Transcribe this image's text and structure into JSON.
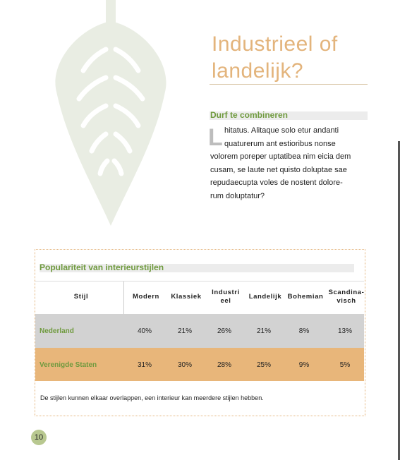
{
  "header": {
    "title": "Industrieel of landelijk?"
  },
  "article": {
    "subtitle": "Durf te combineren",
    "drop_cap": "L",
    "lines": [
      "hitatus. Alitaque solo etur andanti",
      "quaturerum ant estioribus nonse",
      "volorem poreper uptatibea nim eicia dem",
      "cusam, se laute net quisto doluptae sae",
      "repudaecupta voles de nostent dolore-",
      "rum doluptatur?"
    ]
  },
  "table": {
    "title": "Populariteit van interieurstijlen",
    "columns": [
      "Stijl",
      "Modern",
      "Klassiek",
      "Industrieel",
      "Landelijk",
      "Bohemian",
      "Scandina-visch"
    ],
    "rows": [
      [
        "Nederland",
        "40%",
        "21%",
        "26%",
        "21%",
        "8%",
        "13%"
      ],
      [
        "Verenigde Staten",
        "31%",
        "30%",
        "28%",
        "25%",
        "9%",
        "5%"
      ]
    ],
    "note": "De stijlen kunnen elkaar overlappen, een interieur kan meerdere stijlen hebben."
  },
  "footer": {
    "page_number": "10"
  }
}
